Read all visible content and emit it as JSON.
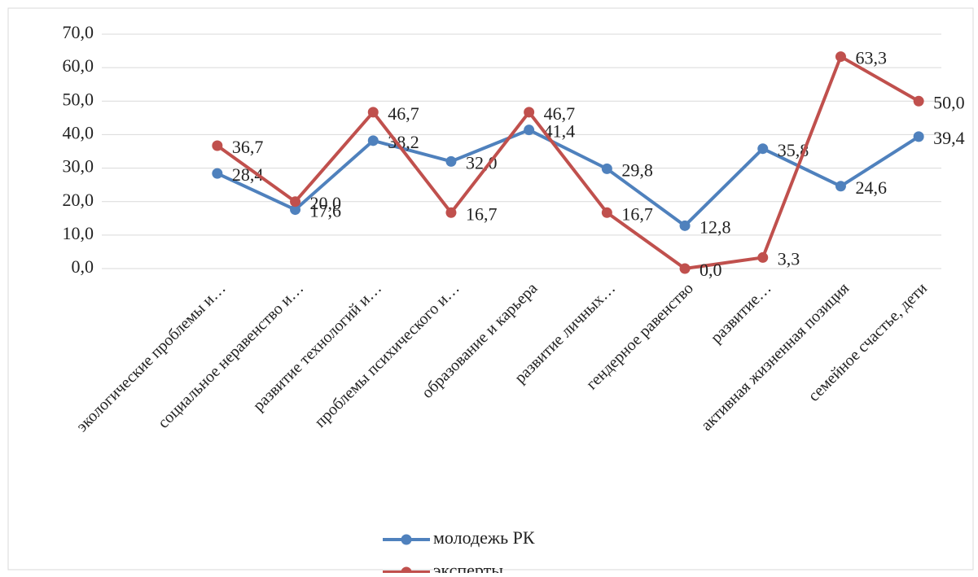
{
  "chart_data": {
    "type": "line",
    "categories": [
      "экологические проблемы и…",
      "социальное неравенство и…",
      "развитие технологий и…",
      "проблемы психического и…",
      "образование и карьера",
      "развитие личных…",
      "гендерное равенство",
      "развитие…",
      "активная жизненная позиция",
      "семейное счастье, дети"
    ],
    "series": [
      {
        "name": "молодежь РК",
        "color": "#4f81bd",
        "values": [
          28.4,
          17.6,
          38.2,
          32.0,
          41.4,
          29.8,
          12.8,
          35.8,
          24.6,
          39.4
        ],
        "value_labels": [
          "28,4",
          "17,6",
          "38,2",
          "32,0",
          "41,4",
          "29,8",
          "12,8",
          "35,8",
          "24,6",
          "39,4"
        ]
      },
      {
        "name": "эксперты",
        "color": "#c0504d",
        "values": [
          36.7,
          20.0,
          46.7,
          16.7,
          46.7,
          16.7,
          0.0,
          3.3,
          63.3,
          50.0
        ],
        "value_labels": [
          "36,7",
          "20,0",
          "46,7",
          "16,7",
          "46,7",
          "16,7",
          "0,0",
          "3,3",
          "63,3",
          "50,0"
        ]
      }
    ],
    "ylim": [
      0,
      70
    ],
    "yticks": [
      {
        "value": 0,
        "label": "0,0"
      },
      {
        "value": 10,
        "label": "10,0"
      },
      {
        "value": 20,
        "label": "20,0"
      },
      {
        "value": 30,
        "label": "30,0"
      },
      {
        "value": 40,
        "label": "40,0"
      },
      {
        "value": 50,
        "label": "50,0"
      },
      {
        "value": 60,
        "label": "60,0"
      },
      {
        "value": 70,
        "label": "70,0"
      }
    ],
    "grid": true,
    "legend": "bottom"
  }
}
